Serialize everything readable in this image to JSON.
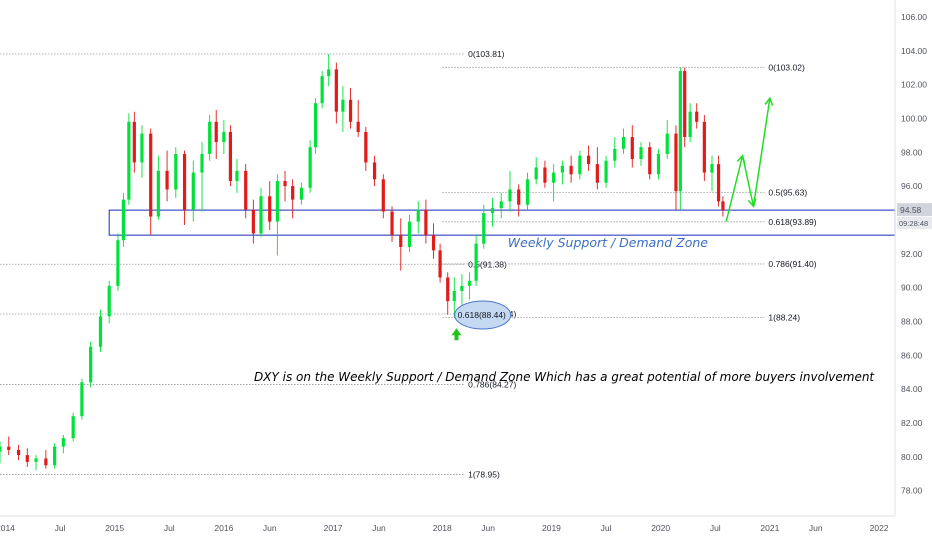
{
  "chart_data": {
    "type": "candlestick",
    "title": "",
    "xlabel": "",
    "ylabel": "",
    "x_ticks": [
      "2014",
      "Jul",
      "2015",
      "Jul",
      "2016",
      "Jun",
      "2017",
      "Jun",
      "2018",
      "Jun",
      "2019",
      "Jul",
      "2020",
      "Jul",
      "2021",
      "Jun",
      "2022"
    ],
    "y_ticks": [
      "78.00",
      "80.00",
      "82.00",
      "84.00",
      "86.00",
      "88.00",
      "90.00",
      "92.00",
      "94.00",
      "96.00",
      "98.00",
      "100.00",
      "102.00",
      "104.00",
      "106.00"
    ],
    "ylim": [
      76.5,
      107
    ],
    "xlim": [
      2013.95,
      2022.1
    ],
    "grid": false,
    "candles_weekly_approx": [
      [
        2013.95,
        80.3,
        80.9,
        79.6,
        80.6
      ],
      [
        2014.03,
        80.6,
        81.2,
        80.1,
        80.4
      ],
      [
        2014.12,
        80.4,
        80.7,
        79.8,
        80.1
      ],
      [
        2014.2,
        80.1,
        80.5,
        79.4,
        79.7
      ],
      [
        2014.28,
        79.7,
        80.1,
        79.2,
        79.9
      ],
      [
        2014.37,
        79.9,
        80.4,
        79.3,
        79.5
      ],
      [
        2014.45,
        79.5,
        80.8,
        79.3,
        80.6
      ],
      [
        2014.53,
        80.6,
        81.3,
        80.2,
        81.1
      ],
      [
        2014.62,
        81.1,
        82.6,
        80.9,
        82.4
      ],
      [
        2014.7,
        82.4,
        84.6,
        82.2,
        84.4
      ],
      [
        2014.78,
        84.4,
        86.8,
        84.1,
        86.5
      ],
      [
        2014.87,
        86.5,
        88.7,
        86.2,
        88.3
      ],
      [
        2014.95,
        88.3,
        90.4,
        87.9,
        90.1
      ],
      [
        2015.03,
        90.1,
        93.2,
        89.8,
        92.8
      ],
      [
        2015.08,
        92.8,
        95.6,
        92.4,
        95.2
      ],
      [
        2015.13,
        95.2,
        100.3,
        94.9,
        99.8
      ],
      [
        2015.18,
        99.8,
        100.4,
        96.8,
        97.4
      ],
      [
        2015.25,
        97.4,
        99.6,
        96.5,
        99.1
      ],
      [
        2015.33,
        99.1,
        99.4,
        93.1,
        94.2
      ],
      [
        2015.4,
        94.2,
        97.8,
        94.0,
        96.9
      ],
      [
        2015.48,
        96.9,
        98.1,
        95.1,
        95.8
      ],
      [
        2015.56,
        95.8,
        98.3,
        95.3,
        97.9
      ],
      [
        2015.64,
        97.9,
        98.1,
        93.7,
        94.6
      ],
      [
        2015.72,
        94.6,
        97.5,
        93.9,
        96.8
      ],
      [
        2015.8,
        96.8,
        98.6,
        94.5,
        97.9
      ],
      [
        2015.87,
        97.9,
        100.2,
        97.5,
        99.8
      ],
      [
        2015.93,
        99.8,
        100.5,
        97.6,
        98.6
      ],
      [
        2016.0,
        98.6,
        99.9,
        97.9,
        99.2
      ],
      [
        2016.06,
        99.2,
        99.6,
        96.0,
        96.3
      ],
      [
        2016.12,
        96.3,
        97.6,
        95.6,
        96.9
      ],
      [
        2016.2,
        96.9,
        97.3,
        94.1,
        94.6
      ],
      [
        2016.27,
        94.6,
        95.2,
        92.6,
        93.2
      ],
      [
        2016.34,
        93.2,
        95.9,
        93.0,
        95.4
      ],
      [
        2016.42,
        95.4,
        96.3,
        93.4,
        93.9
      ],
      [
        2016.49,
        93.9,
        96.7,
        91.9,
        96.3
      ],
      [
        2016.56,
        96.3,
        96.9,
        95.1,
        96.0
      ],
      [
        2016.63,
        96.0,
        96.4,
        94.1,
        95.2
      ],
      [
        2016.71,
        95.2,
        96.2,
        94.9,
        95.9
      ],
      [
        2016.79,
        95.9,
        98.7,
        95.6,
        98.3
      ],
      [
        2016.84,
        98.3,
        101.2,
        97.9,
        100.9
      ],
      [
        2016.9,
        100.9,
        102.8,
        100.6,
        102.5
      ],
      [
        2016.96,
        102.5,
        103.8,
        101.9,
        102.9
      ],
      [
        2017.03,
        102.9,
        103.3,
        99.7,
        100.4
      ],
      [
        2017.09,
        100.4,
        101.9,
        99.2,
        101.1
      ],
      [
        2017.16,
        101.1,
        101.8,
        99.4,
        99.8
      ],
      [
        2017.23,
        99.8,
        101.1,
        98.9,
        99.2
      ],
      [
        2017.3,
        99.2,
        99.5,
        96.9,
        97.4
      ],
      [
        2017.38,
        97.4,
        97.8,
        96.0,
        96.4
      ],
      [
        2017.46,
        96.4,
        96.7,
        94.1,
        94.5
      ],
      [
        2017.54,
        94.5,
        94.8,
        92.7,
        93.1
      ],
      [
        2017.62,
        93.1,
        94.1,
        91.0,
        92.4
      ],
      [
        2017.7,
        92.4,
        94.3,
        92.1,
        93.9
      ],
      [
        2017.78,
        93.9,
        95.1,
        93.2,
        94.6
      ],
      [
        2017.85,
        94.6,
        95.2,
        92.6,
        93.1
      ],
      [
        2017.92,
        93.1,
        93.8,
        91.7,
        92.2
      ],
      [
        2017.98,
        92.2,
        92.6,
        90.3,
        90.6
      ],
      [
        2018.05,
        90.6,
        90.9,
        88.4,
        89.2
      ],
      [
        2018.11,
        89.2,
        90.6,
        88.2,
        89.8
      ],
      [
        2018.18,
        89.8,
        90.8,
        88.9,
        90.1
      ],
      [
        2018.25,
        90.1,
        90.9,
        89.3,
        90.4
      ],
      [
        2018.31,
        90.4,
        93.1,
        90.1,
        92.6
      ],
      [
        2018.38,
        92.6,
        94.9,
        92.3,
        94.4
      ],
      [
        2018.46,
        94.4,
        95.3,
        93.6,
        94.7
      ],
      [
        2018.54,
        94.7,
        95.6,
        94.1,
        95.1
      ],
      [
        2018.62,
        95.1,
        96.9,
        94.5,
        95.8
      ],
      [
        2018.7,
        95.8,
        96.1,
        94.2,
        94.9
      ],
      [
        2018.78,
        94.9,
        96.8,
        94.6,
        96.4
      ],
      [
        2018.86,
        96.4,
        97.7,
        96.1,
        97.1
      ],
      [
        2018.94,
        97.1,
        97.5,
        95.9,
        96.2
      ],
      [
        2019.02,
        96.2,
        97.3,
        95.1,
        96.8
      ],
      [
        2019.1,
        96.8,
        97.5,
        96.1,
        97.2
      ],
      [
        2019.18,
        97.2,
        97.8,
        96.2,
        96.7
      ],
      [
        2019.26,
        96.7,
        98.1,
        96.4,
        97.8
      ],
      [
        2019.34,
        97.8,
        98.4,
        96.9,
        97.3
      ],
      [
        2019.42,
        97.3,
        98.3,
        95.8,
        96.2
      ],
      [
        2019.5,
        96.2,
        97.8,
        95.9,
        97.5
      ],
      [
        2019.58,
        97.5,
        98.9,
        97.1,
        98.2
      ],
      [
        2019.66,
        98.2,
        99.4,
        97.9,
        98.9
      ],
      [
        2019.74,
        98.9,
        99.6,
        97.1,
        97.6
      ],
      [
        2019.82,
        97.6,
        98.6,
        97.2,
        98.3
      ],
      [
        2019.9,
        98.3,
        98.6,
        96.4,
        96.7
      ],
      [
        2019.98,
        96.7,
        98.2,
        96.4,
        97.9
      ],
      [
        2020.06,
        97.9,
        99.9,
        97.6,
        99.1
      ],
      [
        2020.14,
        99.1,
        99.6,
        94.6,
        95.7
      ],
      [
        2020.18,
        95.7,
        103.0,
        94.6,
        102.8
      ],
      [
        2020.22,
        102.8,
        103.0,
        98.3,
        98.9
      ],
      [
        2020.27,
        98.9,
        100.9,
        98.6,
        100.4
      ],
      [
        2020.33,
        100.4,
        100.9,
        99.4,
        99.8
      ],
      [
        2020.4,
        99.8,
        100.2,
        96.3,
        96.8
      ],
      [
        2020.47,
        96.8,
        97.8,
        95.7,
        97.3
      ],
      [
        2020.53,
        97.3,
        97.8,
        94.8,
        95.1
      ],
      [
        2020.57,
        95.1,
        95.4,
        94.2,
        94.58
      ]
    ],
    "fib_levels": [
      {
        "label": "0(103.81)",
        "value": 103.81,
        "x0": 2013.95,
        "x1": 2018.2
      },
      {
        "label": "0.5(91.38)",
        "value": 91.38,
        "x0": 2013.95,
        "x1": 2018.2
      },
      {
        "label": "0.786(84.27)",
        "value": 84.27,
        "x0": 2013.95,
        "x1": 2018.2
      },
      {
        "label": "1(78.95)",
        "value": 78.95,
        "x0": 2013.95,
        "x1": 2018.2
      },
      {
        "label": "0.618(88.44)",
        "value": 88.44,
        "x0": 2013.95,
        "x1": 2018.2
      },
      {
        "label": "0(103.02)",
        "value": 103.02,
        "x0": 2018.0,
        "x1": 2020.95
      },
      {
        "label": "0.5(95.63)",
        "value": 95.63,
        "x0": 2018.0,
        "x1": 2020.95
      },
      {
        "label": "0.618(93.89)",
        "value": 93.89,
        "x0": 2018.0,
        "x1": 2020.95
      },
      {
        "label": "0.786(91.40)",
        "value": 91.4,
        "x0": 2018.0,
        "x1": 2020.95
      },
      {
        "label": "1(88.24)",
        "value": 88.24,
        "x0": 2018.0,
        "x1": 2020.95
      }
    ],
    "demand_zone": {
      "label": "Weekly Support / Demand Zone",
      "y_top": 94.58,
      "y_bottom": 93.1,
      "x_start": 2014.95
    },
    "projection_path": [
      [
        2020.6,
        93.9
      ],
      [
        2020.75,
        97.8
      ],
      [
        2020.85,
        94.8
      ],
      [
        2021.0,
        101.2
      ]
    ],
    "up_arrow_marker": {
      "x": 2018.13,
      "y": 87.6,
      "color": "#22c41a"
    },
    "annotation": "DXY is on the Weekly Support / Demand Zone Which has a great potential of more buyers involvement",
    "price_badge": {
      "value": "94.58",
      "timer": "09:28:48"
    },
    "colors": {
      "up": "#00e23a",
      "down": "#e21a1a",
      "zone": "#2d3fc4",
      "projection": "#22dd22",
      "ellipse_fill": "#c6d9f2",
      "ellipse_stroke": "#4a76c8"
    }
  }
}
